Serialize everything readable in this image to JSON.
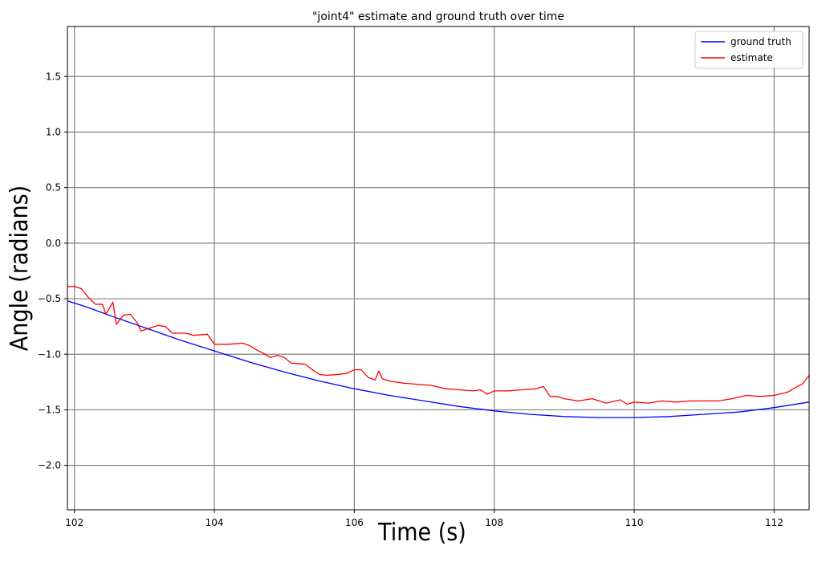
{
  "chart_data": {
    "type": "line",
    "title": "\"joint4\" estimate and ground truth over time",
    "xlabel": "Time (s)",
    "ylabel": "Angle (radians)",
    "xlim": [
      101.9,
      112.5
    ],
    "ylim": [
      -2.4,
      1.95
    ],
    "x_ticks": [
      102,
      104,
      106,
      108,
      110,
      112
    ],
    "y_ticks": [
      1.5,
      1.0,
      0.5,
      0.0,
      -0.5,
      -1.0,
      -1.5,
      -2.0
    ],
    "x_tick_labels": [
      "102",
      "104",
      "106",
      "108",
      "110",
      "112"
    ],
    "y_tick_labels": [
      "1.5",
      "1.0",
      "0.5",
      "0.0",
      "−0.5",
      "−1.0",
      "−1.5",
      "−2.0"
    ],
    "grid": true,
    "legend": {
      "position": "top-right",
      "entries": [
        "ground truth",
        "estimate"
      ]
    },
    "series": [
      {
        "name": "ground truth",
        "color": "#0000ff",
        "points": [
          [
            101.9,
            -0.52
          ],
          [
            102.2,
            -0.58
          ],
          [
            102.5,
            -0.65
          ],
          [
            103.0,
            -0.76
          ],
          [
            103.5,
            -0.87
          ],
          [
            104.0,
            -0.97
          ],
          [
            104.5,
            -1.07
          ],
          [
            105.0,
            -1.16
          ],
          [
            105.5,
            -1.24
          ],
          [
            106.0,
            -1.31
          ],
          [
            106.5,
            -1.37
          ],
          [
            107.0,
            -1.42
          ],
          [
            107.5,
            -1.47
          ],
          [
            108.0,
            -1.51
          ],
          [
            108.5,
            -1.54
          ],
          [
            109.0,
            -1.56
          ],
          [
            109.5,
            -1.57
          ],
          [
            110.0,
            -1.57
          ],
          [
            110.5,
            -1.56
          ],
          [
            111.0,
            -1.54
          ],
          [
            111.5,
            -1.52
          ],
          [
            112.0,
            -1.48
          ],
          [
            112.5,
            -1.43
          ]
        ]
      },
      {
        "name": "estimate",
        "color": "#ff0000",
        "points": [
          [
            101.9,
            -0.39
          ],
          [
            102.0,
            -0.39
          ],
          [
            102.1,
            -0.41
          ],
          [
            102.2,
            -0.49
          ],
          [
            102.3,
            -0.55
          ],
          [
            102.4,
            -0.55
          ],
          [
            102.45,
            -0.64
          ],
          [
            102.55,
            -0.53
          ],
          [
            102.6,
            -0.73
          ],
          [
            102.7,
            -0.65
          ],
          [
            102.8,
            -0.64
          ],
          [
            102.9,
            -0.72
          ],
          [
            102.95,
            -0.79
          ],
          [
            103.1,
            -0.76
          ],
          [
            103.2,
            -0.74
          ],
          [
            103.3,
            -0.75
          ],
          [
            103.4,
            -0.81
          ],
          [
            103.6,
            -0.81
          ],
          [
            103.7,
            -0.83
          ],
          [
            103.9,
            -0.82
          ],
          [
            104.0,
            -0.91
          ],
          [
            104.2,
            -0.91
          ],
          [
            104.4,
            -0.9
          ],
          [
            104.5,
            -0.92
          ],
          [
            104.6,
            -0.96
          ],
          [
            104.7,
            -0.99
          ],
          [
            104.8,
            -1.03
          ],
          [
            104.9,
            -1.01
          ],
          [
            105.0,
            -1.03
          ],
          [
            105.1,
            -1.08
          ],
          [
            105.3,
            -1.09
          ],
          [
            105.4,
            -1.14
          ],
          [
            105.5,
            -1.18
          ],
          [
            105.6,
            -1.19
          ],
          [
            105.8,
            -1.18
          ],
          [
            105.9,
            -1.17
          ],
          [
            106.0,
            -1.14
          ],
          [
            106.1,
            -1.14
          ],
          [
            106.2,
            -1.21
          ],
          [
            106.3,
            -1.23
          ],
          [
            106.35,
            -1.15
          ],
          [
            106.4,
            -1.22
          ],
          [
            106.5,
            -1.24
          ],
          [
            106.7,
            -1.26
          ],
          [
            106.9,
            -1.27
          ],
          [
            107.1,
            -1.28
          ],
          [
            107.3,
            -1.31
          ],
          [
            107.5,
            -1.32
          ],
          [
            107.7,
            -1.33
          ],
          [
            107.8,
            -1.32
          ],
          [
            107.9,
            -1.36
          ],
          [
            108.0,
            -1.33
          ],
          [
            108.2,
            -1.33
          ],
          [
            108.4,
            -1.32
          ],
          [
            108.6,
            -1.31
          ],
          [
            108.7,
            -1.29
          ],
          [
            108.8,
            -1.38
          ],
          [
            108.9,
            -1.38
          ],
          [
            109.0,
            -1.4
          ],
          [
            109.2,
            -1.42
          ],
          [
            109.4,
            -1.4
          ],
          [
            109.6,
            -1.44
          ],
          [
            109.8,
            -1.41
          ],
          [
            109.9,
            -1.45
          ],
          [
            110.0,
            -1.43
          ],
          [
            110.2,
            -1.44
          ],
          [
            110.4,
            -1.42
          ],
          [
            110.6,
            -1.43
          ],
          [
            110.8,
            -1.42
          ],
          [
            111.0,
            -1.42
          ],
          [
            111.2,
            -1.42
          ],
          [
            111.4,
            -1.4
          ],
          [
            111.6,
            -1.37
          ],
          [
            111.8,
            -1.38
          ],
          [
            112.0,
            -1.37
          ],
          [
            112.2,
            -1.34
          ],
          [
            112.3,
            -1.3
          ],
          [
            112.4,
            -1.27
          ],
          [
            112.5,
            -1.19
          ]
        ]
      }
    ]
  }
}
